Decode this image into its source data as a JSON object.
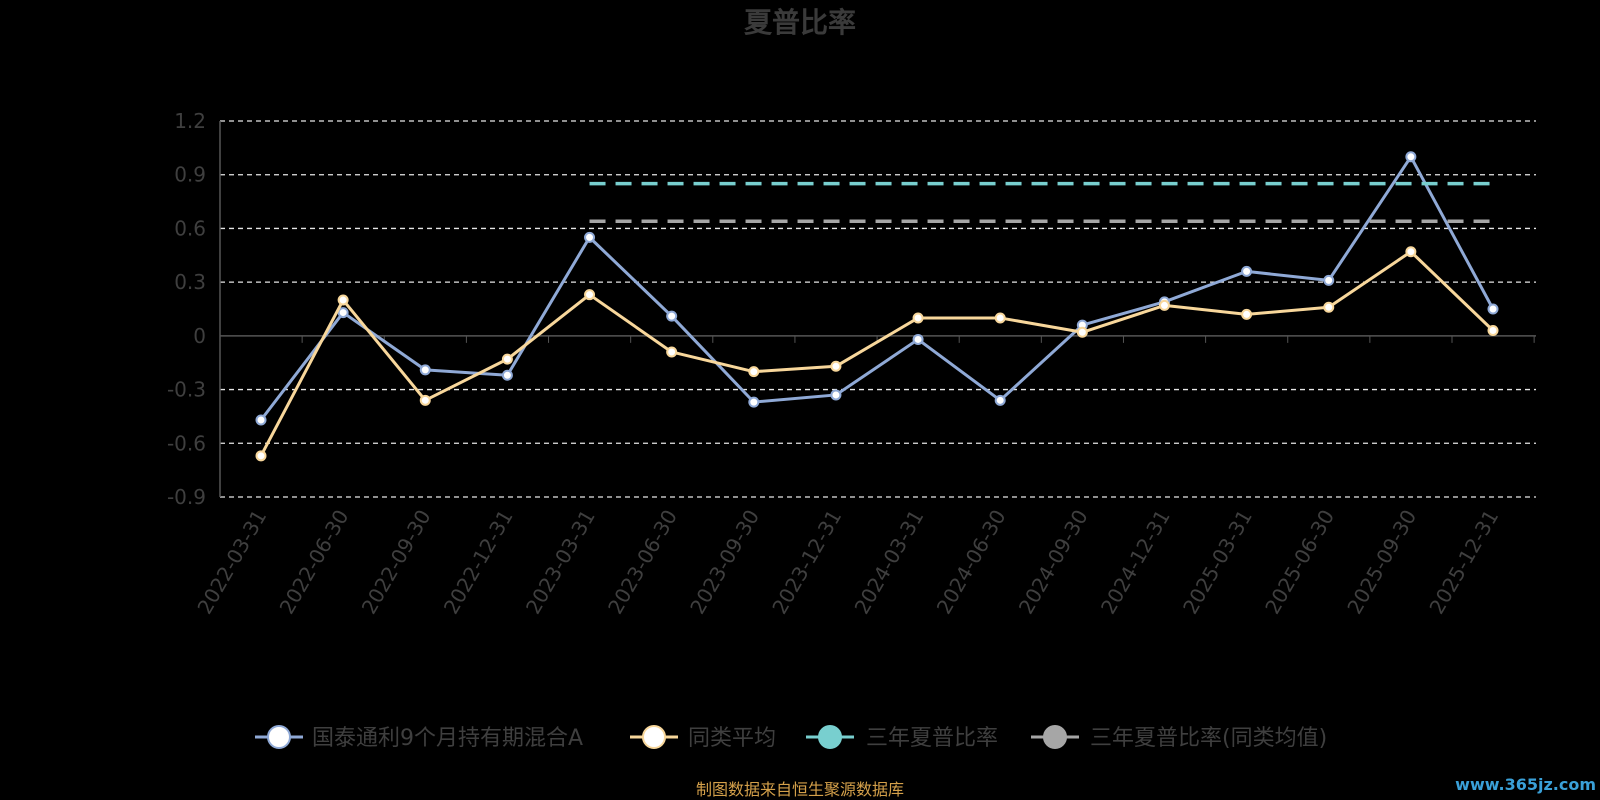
{
  "chart_data": {
    "type": "line",
    "title": "夏普比率",
    "categories": [
      "2022-03-31",
      "2022-06-30",
      "2022-09-30",
      "2022-12-31",
      "2023-03-31",
      "2023-06-30",
      "2023-09-30",
      "2023-12-31",
      "2024-03-31",
      "2024-06-30",
      "2024-09-30",
      "2024-12-31",
      "2025-03-31",
      "2025-06-30",
      "2025-09-30",
      "2025-12-31"
    ],
    "y_ticks": [
      "1.2",
      "0.9",
      "0.6",
      "0.3",
      "0",
      "-0.3",
      "-0.6",
      "-0.9"
    ],
    "ylim": [
      -0.9,
      1.2
    ],
    "grid": true,
    "legend_position": "bottom",
    "series": [
      {
        "name": "国泰通利9个月持有期混合A",
        "color": "#8fa9d6",
        "values": [
          -0.47,
          0.13,
          -0.19,
          -0.22,
          0.55,
          0.11,
          -0.37,
          -0.33,
          -0.02,
          -0.36,
          0.06,
          0.19,
          0.36,
          0.31,
          1.0,
          0.15
        ]
      },
      {
        "name": "同类平均",
        "color": "#f8d79b",
        "values": [
          -0.67,
          0.2,
          -0.36,
          -0.13,
          0.23,
          -0.09,
          -0.2,
          -0.17,
          0.1,
          0.1,
          0.02,
          0.17,
          0.12,
          0.16,
          0.47,
          0.03
        ]
      },
      {
        "name": "三年夏普比率",
        "color": "#78cfcf",
        "style": "dashed",
        "x_range": [
          "2023-03-31",
          "2025-12-31"
        ],
        "value": 0.85
      },
      {
        "name": "三年夏普比率(同类均值)",
        "color": "#a6a6a6",
        "style": "dashed",
        "x_range": [
          "2023-03-31",
          "2025-12-31"
        ],
        "value": 0.64
      }
    ]
  },
  "footer": {
    "source": "制图数据来自恒生聚源数据库",
    "watermark": "www.365jz.com"
  }
}
